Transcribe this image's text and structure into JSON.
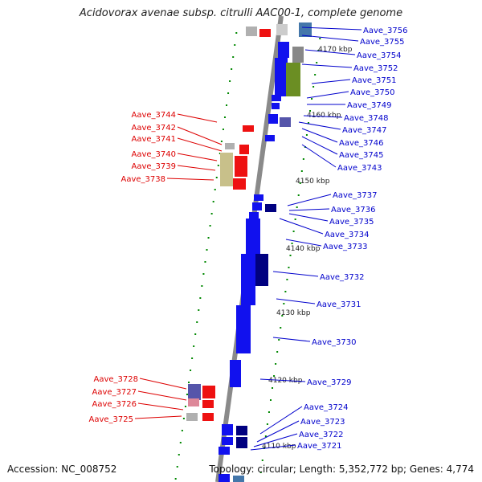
{
  "title": "Acidovorax avenae subsp. citrulli AAC00-1, complete genome",
  "accession": "Accession: NC_008752",
  "topology": "Topology: circular; Length: 5,352,772 bp; Genes: 4,774",
  "colors": {
    "forward_gene": "#ee1111",
    "reverse_gene": "#1111ee",
    "forward_label": "#dd0000",
    "reverse_label": "#0000cc",
    "backbone": "#8a8a8a",
    "tick": "#008800",
    "khaki_feature": "#c8c08a",
    "olive_feature": "#6b8e23",
    "navy_feature": "#000080",
    "slate_feature": "#5555aa",
    "grey_feature": "#b0b0b0"
  },
  "kbp_ticks": [
    {
      "label": "4110 kbp"
    },
    {
      "label": "4120 kbp"
    },
    {
      "label": "4130 kbp"
    },
    {
      "label": "4140 kbp"
    },
    {
      "label": "4150 kbp"
    },
    {
      "label": "4160 kbp"
    },
    {
      "label": "4170 kbp"
    }
  ],
  "genes_right": [
    "Aave_3756",
    "Aave_3755",
    "Aave_3754",
    "Aave_3752",
    "Aave_3751",
    "Aave_3750",
    "Aave_3749",
    "Aave_3748",
    "Aave_3747",
    "Aave_3746",
    "Aave_3745",
    "Aave_3743",
    "Aave_3737",
    "Aave_3736",
    "Aave_3735",
    "Aave_3734",
    "Aave_3733",
    "Aave_3732",
    "Aave_3731",
    "Aave_3730",
    "Aave_3729",
    "Aave_3724",
    "Aave_3723",
    "Aave_3722",
    "Aave_3721"
  ],
  "genes_left": [
    "Aave_3744",
    "Aave_3742",
    "Aave_3741",
    "Aave_3740",
    "Aave_3739",
    "Aave_3738",
    "Aave_3728",
    "Aave_3727",
    "Aave_3726",
    "Aave_3725"
  ]
}
